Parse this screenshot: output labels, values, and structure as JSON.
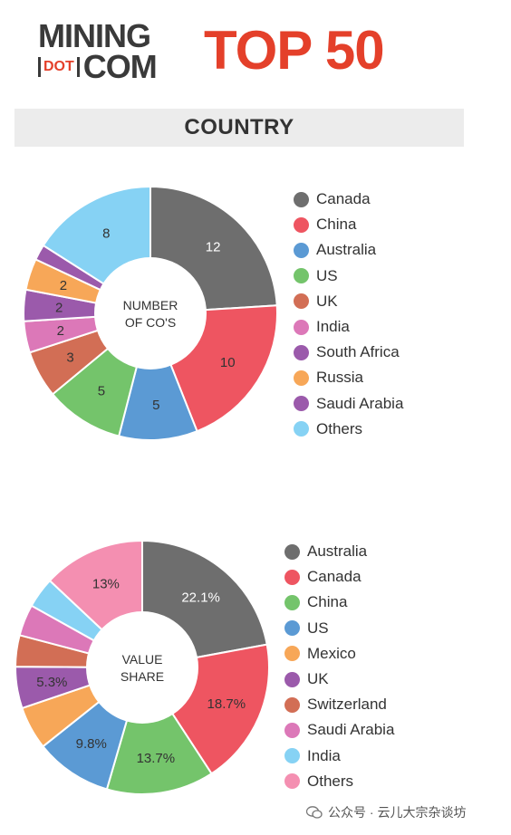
{
  "header": {
    "logo_line1": "MINING",
    "logo_dot": "DOT",
    "logo_line2": "COM",
    "title": "TOP 50"
  },
  "section": {
    "title": "COUNTRY"
  },
  "watermark": {
    "text": "公众号 · 云儿大宗杂谈坊"
  },
  "chart_data": [
    {
      "type": "pie",
      "center_label": [
        "NUMBER",
        "OF CO'S"
      ],
      "categories": [
        "Canada",
        "China",
        "Australia",
        "US",
        "UK",
        "India",
        "South Africa",
        "Russia",
        "Saudi Arabia",
        "Others"
      ],
      "values": [
        12,
        10,
        5,
        5,
        3,
        2,
        2,
        2,
        1,
        8
      ],
      "labels": [
        "12",
        "10",
        "5",
        "5",
        "3",
        "2",
        "2",
        "2",
        "",
        "8"
      ],
      "colors": [
        "#6e6e6e",
        "#ee5561",
        "#5b9ad4",
        "#74c46b",
        "#d26e55",
        "#dc78b8",
        "#9b5aab",
        "#f7a758",
        "#9b5aab",
        "#86d2f4"
      ],
      "label_colors": [
        "#ffffff",
        "#333333",
        "#333333",
        "#333333",
        "#333333",
        "#333333",
        "#333333",
        "#333333",
        "#333333",
        "#333333"
      ],
      "legend": [
        "Canada",
        "China",
        "Australia",
        "US",
        "UK",
        "India",
        "South Africa",
        "Russia",
        "Saudi Arabia",
        "Others"
      ],
      "legend_colors": [
        "#6e6e6e",
        "#ee5561",
        "#5b9ad4",
        "#74c46b",
        "#d26e55",
        "#dc78b8",
        "#9b5aab",
        "#f7a758",
        "#9b5aab",
        "#86d2f4"
      ],
      "legend_position": "right"
    },
    {
      "type": "pie",
      "center_label": [
        "VALUE",
        "SHARE"
      ],
      "categories": [
        "Australia",
        "Canada",
        "China",
        "US",
        "Mexico",
        "UK",
        "Switzerland",
        "Saudi Arabia",
        "India",
        "Others"
      ],
      "values": [
        22.1,
        18.7,
        13.7,
        9.8,
        5.5,
        5.3,
        4.0,
        4.0,
        3.9,
        13.0
      ],
      "labels": [
        "22.1%",
        "18.7%",
        "13.7%",
        "9.8%",
        "",
        "5.3%",
        "",
        "",
        "",
        "13%"
      ],
      "colors": [
        "#6e6e6e",
        "#ee5561",
        "#74c46b",
        "#5b9ad4",
        "#f7a758",
        "#9b5aab",
        "#d26e55",
        "#dc78b8",
        "#86d2f4",
        "#f48fb1"
      ],
      "label_colors": [
        "#ffffff",
        "#333333",
        "#333333",
        "#333333",
        "#333333",
        "#333333",
        "#333333",
        "#333333",
        "#333333",
        "#333333"
      ],
      "legend": [
        "Australia",
        "Canada",
        "China",
        "US",
        "Mexico",
        "UK",
        "Switzerland",
        "Saudi Arabia",
        "India",
        "Others"
      ],
      "legend_colors": [
        "#6e6e6e",
        "#ee5561",
        "#74c46b",
        "#5b9ad4",
        "#f7a758",
        "#9b5aab",
        "#d26e55",
        "#dc78b8",
        "#86d2f4",
        "#f48fb1"
      ],
      "legend_position": "right"
    }
  ]
}
